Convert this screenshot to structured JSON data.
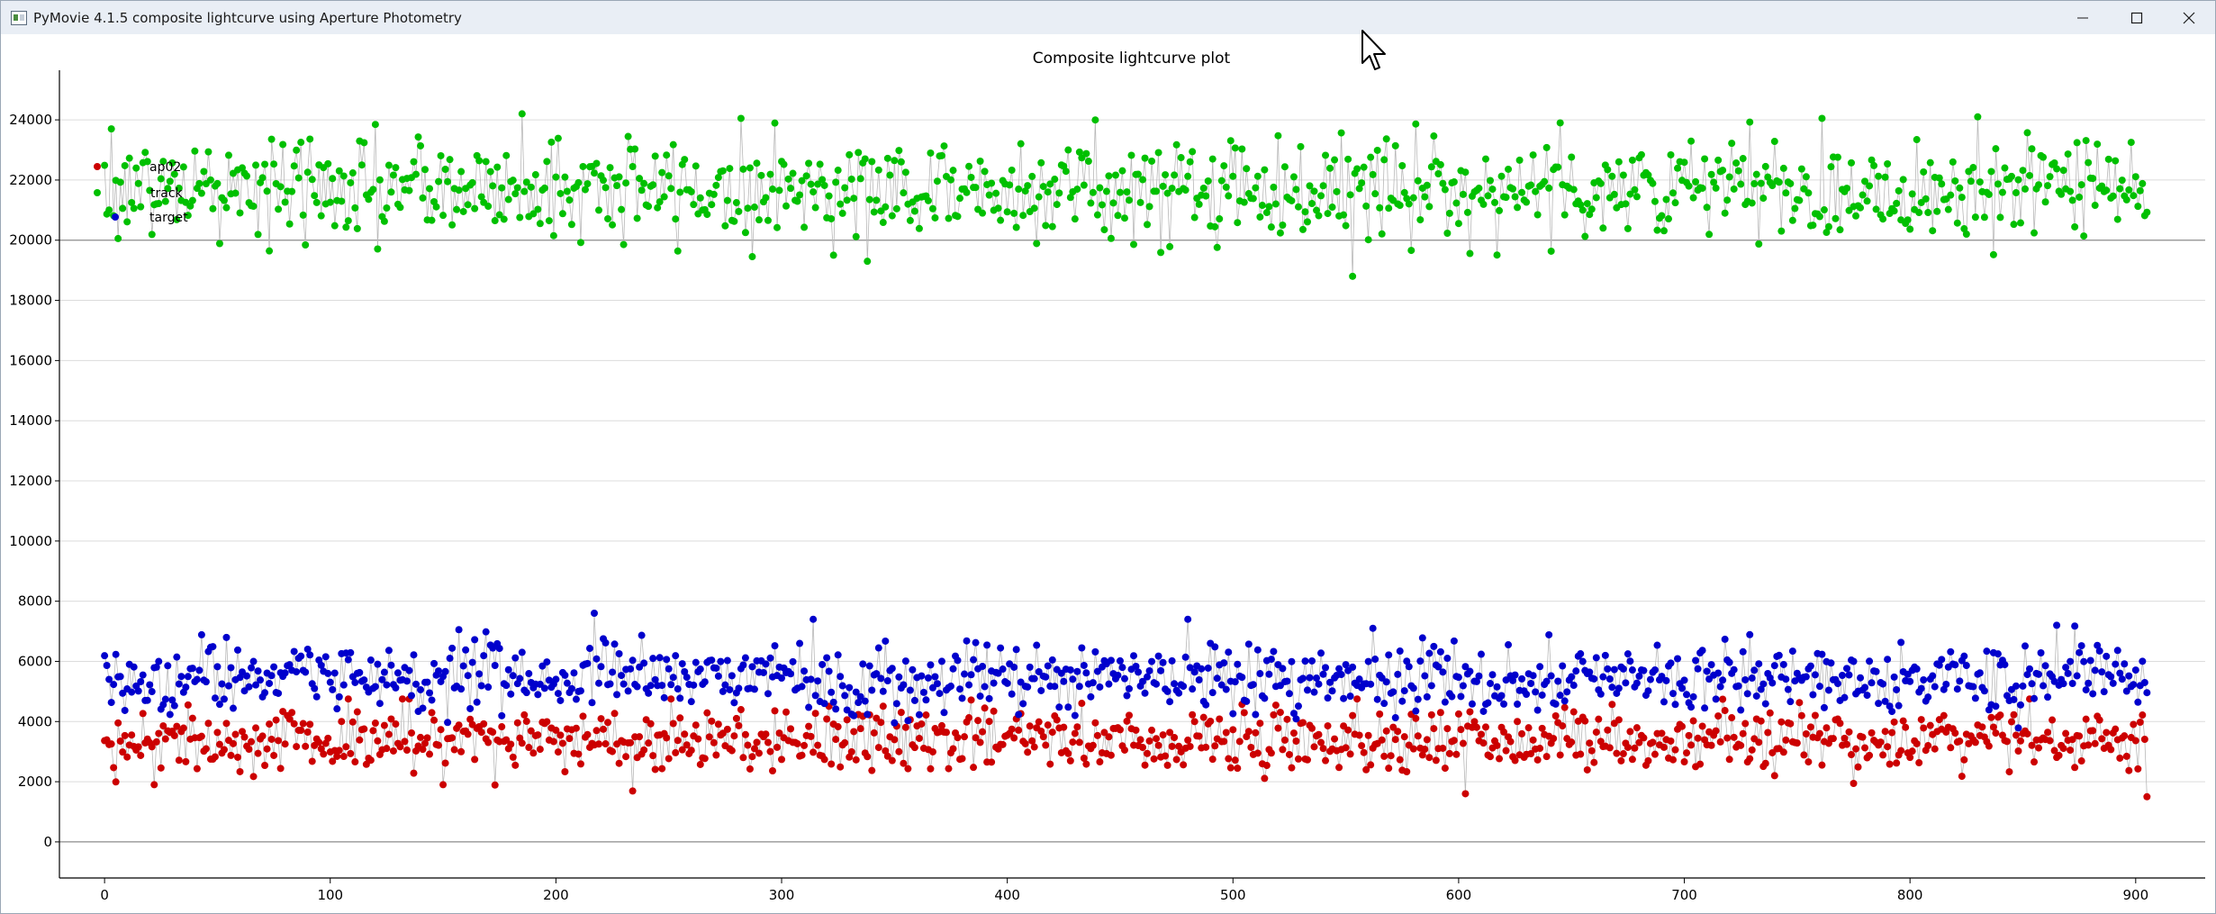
{
  "window": {
    "title": "PyMovie 4.1.5 composite lightcurve using Aperture Photometry",
    "controls": {
      "minimize": "minimize-icon",
      "maximize": "maximize-icon",
      "close": "close-icon"
    }
  },
  "chart_data": {
    "type": "scatter",
    "title": "Composite lightcurve plot",
    "xlabel": "",
    "ylabel": "",
    "xlim": [
      -20,
      930
    ],
    "ylim": [
      -1200,
      25500
    ],
    "x_ticks": [
      0,
      100,
      200,
      300,
      400,
      500,
      600,
      700,
      800,
      900
    ],
    "y_ticks": [
      0,
      2000,
      4000,
      6000,
      8000,
      10000,
      12000,
      14000,
      16000,
      18000,
      20000,
      22000,
      24000
    ],
    "grid": true,
    "connected_points": true,
    "legend": {
      "placement": "top-left",
      "entries": [
        "ap02",
        "track",
        "target"
      ]
    },
    "n_points": 906,
    "series": [
      {
        "name": "ap02",
        "color": "#00c000",
        "mean": 21700,
        "spread": 850,
        "min": 18800,
        "max": 24200,
        "notable_points": [
          [
            3,
            23700
          ],
          [
            185,
            24200
          ],
          [
            553,
            18800
          ],
          [
            645,
            23900
          ],
          [
            830,
            24100
          ]
        ]
      },
      {
        "name": "track",
        "color": "#cc0000",
        "mean": 3400,
        "spread": 520,
        "min": 1500,
        "max": 4900,
        "notable_points": [
          [
            22,
            1900
          ],
          [
            150,
            1900
          ],
          [
            603,
            1600
          ],
          [
            905,
            1500
          ]
        ]
      },
      {
        "name": "target",
        "color": "#0000cc",
        "mean": 5450,
        "spread": 550,
        "min": 3500,
        "max": 7600,
        "notable_points": [
          [
            217,
            7600
          ],
          [
            314,
            7400
          ],
          [
            480,
            7400
          ],
          [
            562,
            7100
          ],
          [
            865,
            7200
          ]
        ]
      }
    ]
  }
}
